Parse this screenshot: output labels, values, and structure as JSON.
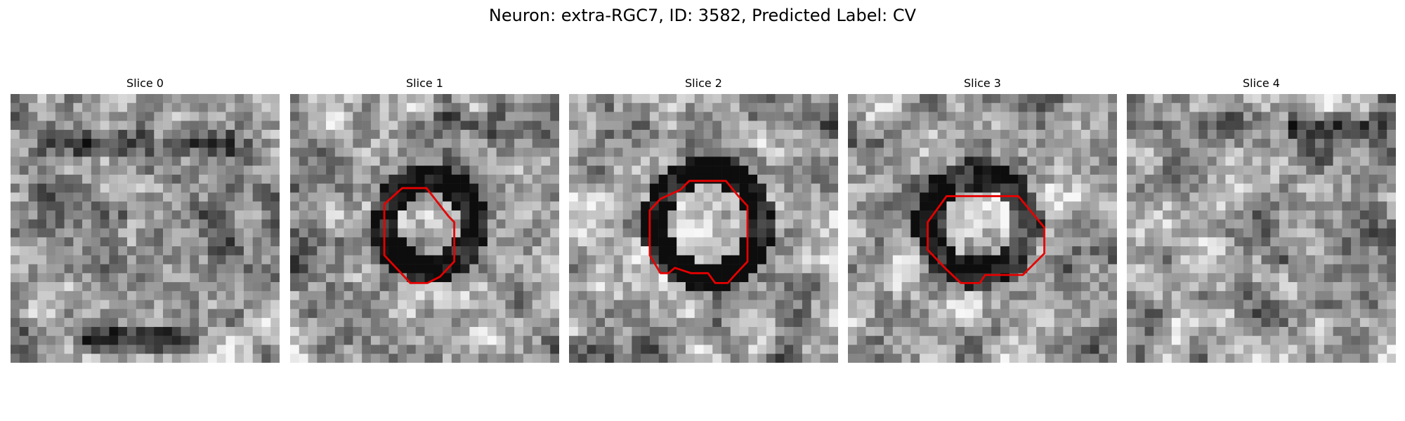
{
  "figure": {
    "title": "Neuron: extra-RGC7, ID: 3582, Predicted Label: CV",
    "outline_color": "#e60000",
    "slices": [
      {
        "label": "Slice 0",
        "has_outline": false
      },
      {
        "label": "Slice 1",
        "has_outline": true
      },
      {
        "label": "Slice 2",
        "has_outline": true
      },
      {
        "label": "Slice 3",
        "has_outline": true
      },
      {
        "label": "Slice 4",
        "has_outline": false
      }
    ]
  }
}
